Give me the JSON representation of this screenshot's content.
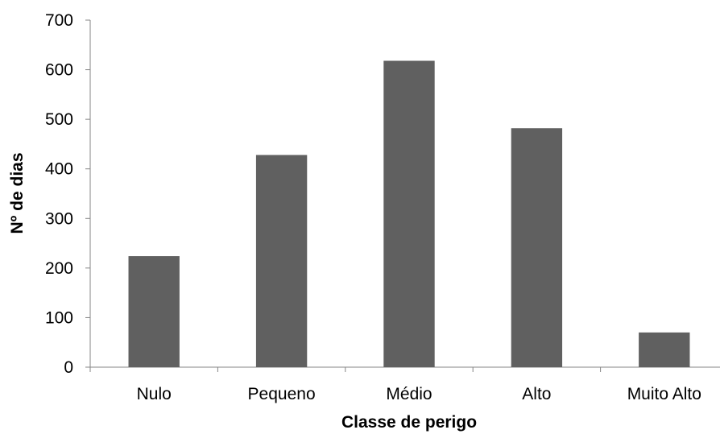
{
  "chart_data": {
    "type": "bar",
    "title": "",
    "xlabel": "Classe de perigo",
    "ylabel": "Nº de dias",
    "categories": [
      "Nulo",
      "Pequeno",
      "Médio",
      "Alto",
      "Muito Alto"
    ],
    "values": [
      224,
      428,
      618,
      482,
      70
    ],
    "ylim": [
      0,
      700
    ],
    "yticks": [
      "0",
      "100",
      "200",
      "300",
      "400",
      "500",
      "600",
      "700"
    ],
    "grid": false,
    "legend": "none",
    "colors": {
      "bar": "#606060",
      "axis": "#868686",
      "text": "#000000"
    }
  }
}
